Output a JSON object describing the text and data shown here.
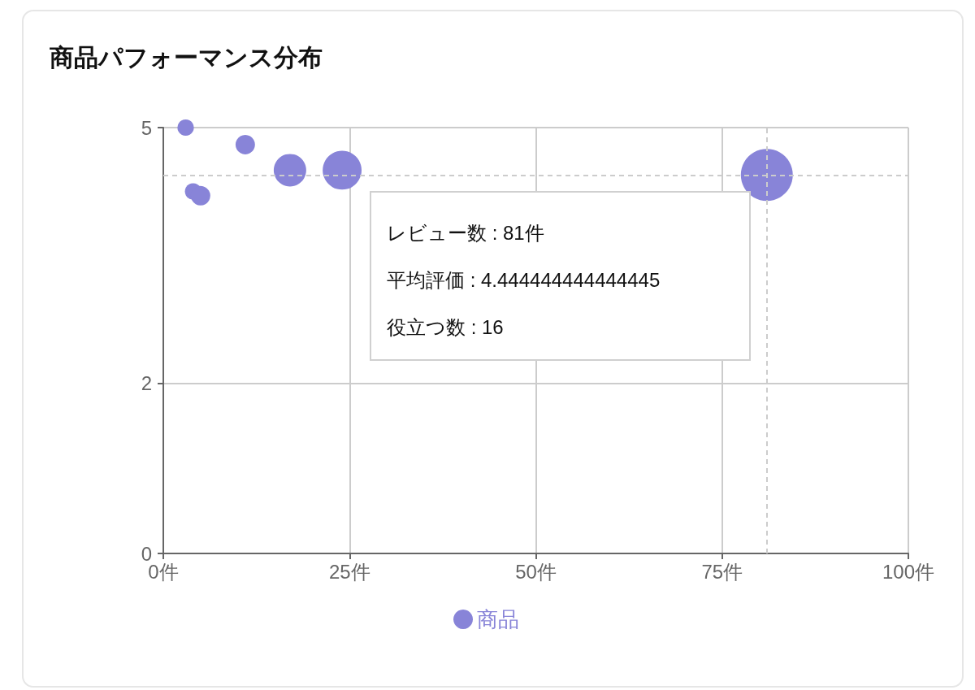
{
  "chart_data": {
    "type": "bubble",
    "title": "商品パフォーマンス分布",
    "series": [
      {
        "name": "商品",
        "color": "#8884d8",
        "x": [
          3,
          4,
          5,
          11,
          17,
          24,
          81
        ],
        "values": [
          5,
          4.25,
          4.2,
          4.8,
          4.5,
          4.5,
          4.444444444444445
        ],
        "sizes": [
          0.1,
          0.1,
          0.14,
          0.14,
          0.39,
          0.56,
          1
        ]
      }
    ],
    "xlim": [
      0,
      100
    ],
    "xticks": [
      {
        "value": 0,
        "label": "0件"
      },
      {
        "value": 25,
        "label": "25件"
      },
      {
        "value": 50,
        "label": "50件"
      },
      {
        "value": 75,
        "label": "75件"
      },
      {
        "value": 100,
        "label": "100件"
      }
    ],
    "ylim": [
      0,
      5
    ],
    "yticks": [
      0,
      2,
      5
    ],
    "grid": true,
    "legend": "bottom",
    "marker": "circle",
    "ref_lines": [
      {
        "axis": "x",
        "value": 81,
        "color": "#cccccc",
        "line_style": "dashed"
      },
      {
        "axis": "y",
        "value": 4.444444444444445,
        "color": "#cccccc",
        "line_style": "dashed"
      }
    ],
    "annotations": [
      "レビュー数 : 81件",
      "平均評価 : 4.444444444444445",
      "役立つ数 : 16"
    ]
  }
}
